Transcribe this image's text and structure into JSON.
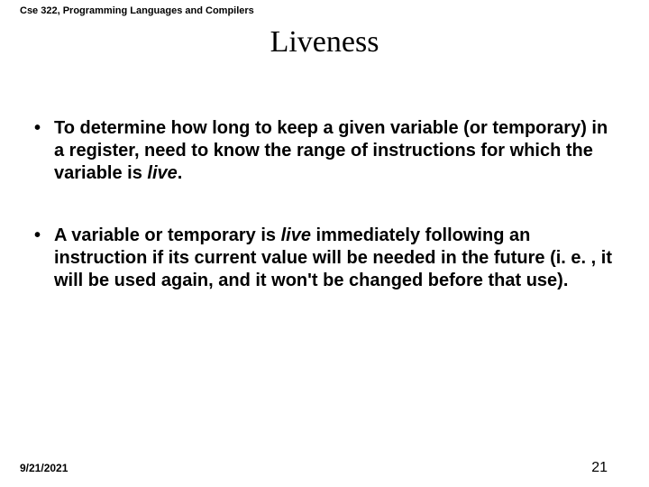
{
  "header": {
    "course": "Cse 322, Programming Languages and Compilers"
  },
  "title": "Liveness",
  "bullets": [
    {
      "pre": "To determine how long to keep a given variable (or temporary) in a register, need to know the range of instructions for which the variable is ",
      "live": "live",
      "post": "."
    },
    {
      "pre": "A variable or temporary is ",
      "live": "live",
      "post": " immediately following an instruction if its current value will be needed in the future (i. e. , it will be used again, and it won't be changed before that use)."
    }
  ],
  "footer": {
    "date": "9/21/2021",
    "page": "21"
  }
}
